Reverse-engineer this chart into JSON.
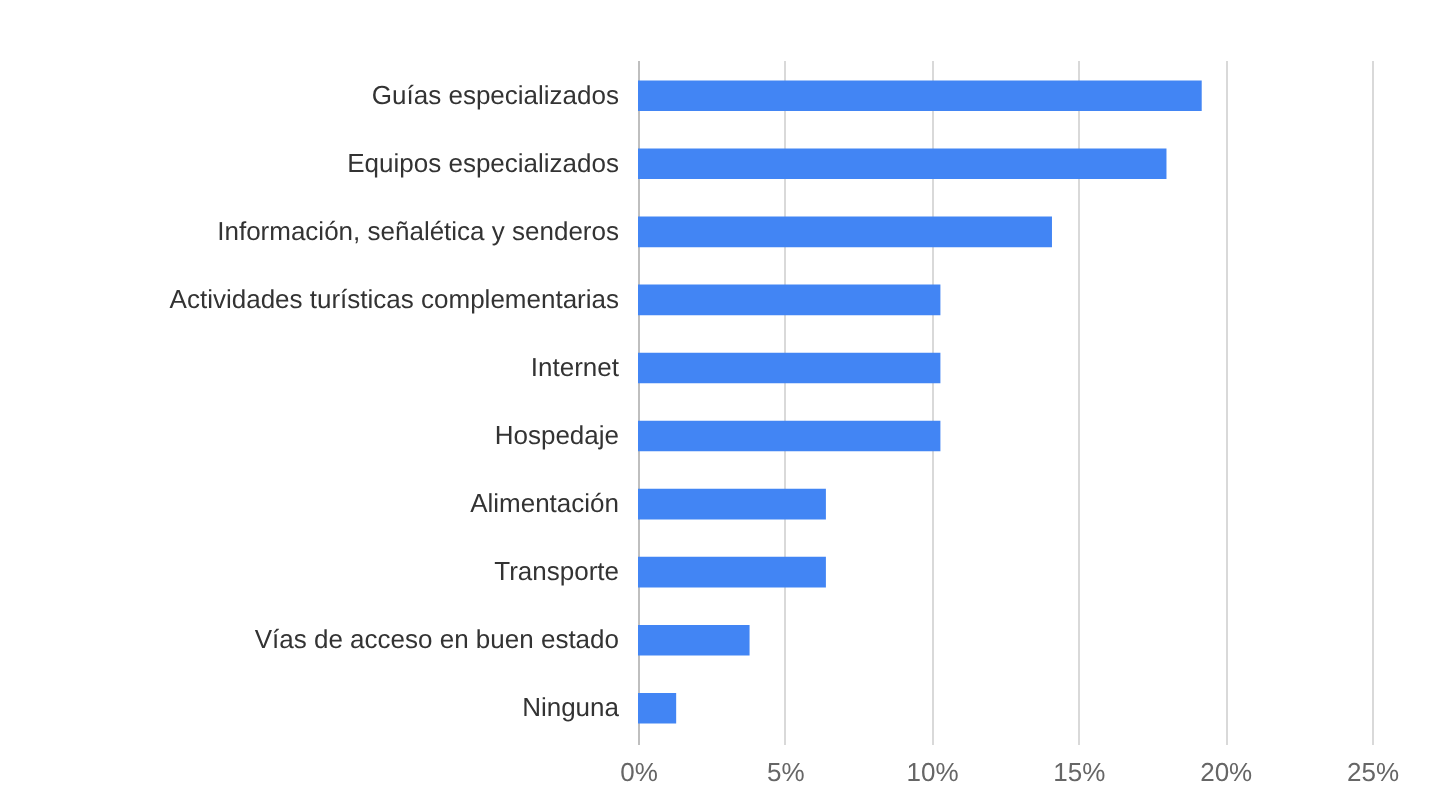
{
  "chart_data": {
    "type": "bar",
    "orientation": "horizontal",
    "categories": [
      "Guías especializados",
      "Equipos especializados",
      "Información, señalética y senderos",
      "Actividades turísticas complementarias",
      "Internet",
      "Hospedaje",
      "Alimentación",
      "Transporte",
      "Vías de acceso en buen estado",
      "Ninguna"
    ],
    "values": [
      19.2,
      18.0,
      14.1,
      10.3,
      10.3,
      10.3,
      6.4,
      6.4,
      3.8,
      1.3
    ],
    "color": "#4285f4",
    "xlim": [
      0,
      25
    ],
    "xticks": [
      {
        "value": 0,
        "label": "0%"
      },
      {
        "value": 5,
        "label": "5%"
      },
      {
        "value": 10,
        "label": "10%"
      },
      {
        "value": 15,
        "label": "15%"
      },
      {
        "value": 20,
        "label": "20%"
      },
      {
        "value": 25,
        "label": "25%"
      }
    ],
    "grid": "x"
  }
}
